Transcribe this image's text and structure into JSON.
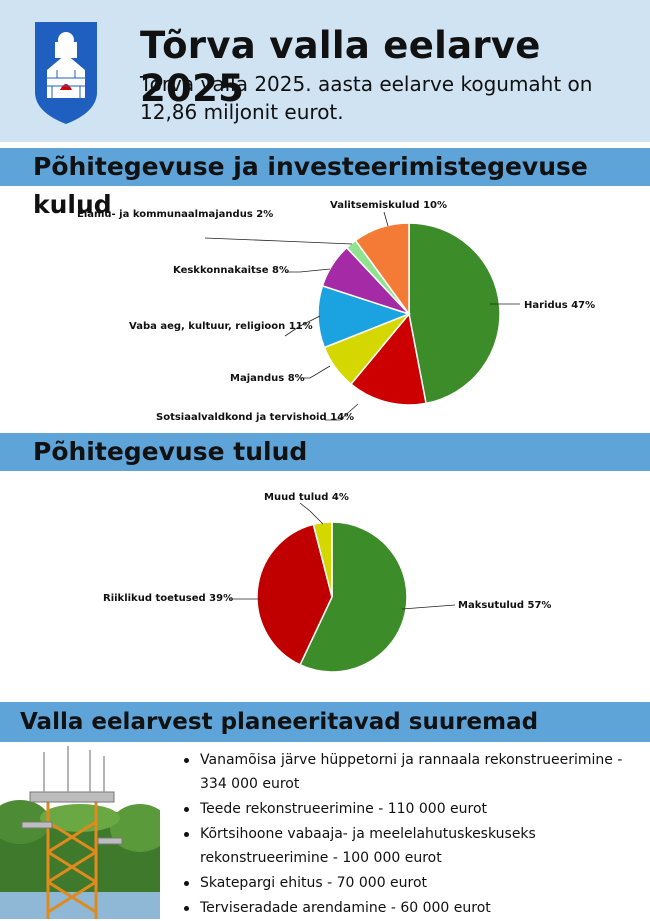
{
  "header": {
    "title": "Tõrva valla eelarve 2025",
    "subtitle": "Tõrva valla 2025. aasta eelarve kogumaht on 12,86 miljonit eurot."
  },
  "section1": {
    "heading": "Põhitegevuse ja investeerimistegevuse kulud"
  },
  "section2": {
    "heading": "Põhitegevuse tulud"
  },
  "section3": {
    "heading": "Valla eelarvest planeeritavad suuremad investeeringud:"
  },
  "chart_data": [
    {
      "type": "pie",
      "title": "",
      "series": [
        {
          "label": "Haridus 47%",
          "value": 47,
          "color": "#3d8c2a"
        },
        {
          "label": "Sotsiaalvaldkond ja tervishoid 14%",
          "value": 14,
          "color": "#cc0000"
        },
        {
          "label": "Majandus 8%",
          "value": 8,
          "color": "#d4d800"
        },
        {
          "label": "Vaba aeg, kultuur, religioon 11%",
          "value": 11,
          "color": "#1aa3e0"
        },
        {
          "label": "Keskkonnakaitse 8%",
          "value": 8,
          "color": "#a52aa5"
        },
        {
          "label": "Elamu- ja kommunaalmajandus 2%",
          "value": 2,
          "color": "#8fe38f"
        },
        {
          "label": "Valitsemiskulud 10%",
          "value": 10,
          "color": "#f47b36"
        }
      ]
    },
    {
      "type": "pie",
      "title": "",
      "series": [
        {
          "label": "Maksutulud 57%",
          "value": 57,
          "color": "#3d8c2a"
        },
        {
          "label": "Riiklikud toetused 39%",
          "value": 39,
          "color": "#c00000"
        },
        {
          "label": "Muud tulud 4%",
          "value": 4,
          "color": "#d4d800"
        }
      ]
    }
  ],
  "investments": [
    "Vanamõisa järve hüppetorni ja rannaala rekonstrueerimine - 334 000 eurot",
    "Teede rekonstrueerimine - 110 000 eurot",
    "Kõrtsihoone vabaaja- ja meelelahutuskeskuseks rekonstrueerimine - 100 000 eurot",
    "Skatepargi ehitus - 70 000 eurot",
    "Terviseradade arendamine - 60 000 eurot"
  ],
  "colors": {
    "header_bg": "#cfe3f2",
    "band": "#5fa4d9",
    "crest_blue": "#1f5fbf"
  },
  "icons": {
    "crest": "coat-of-arms-icon",
    "tower": "observation-tower-image"
  }
}
